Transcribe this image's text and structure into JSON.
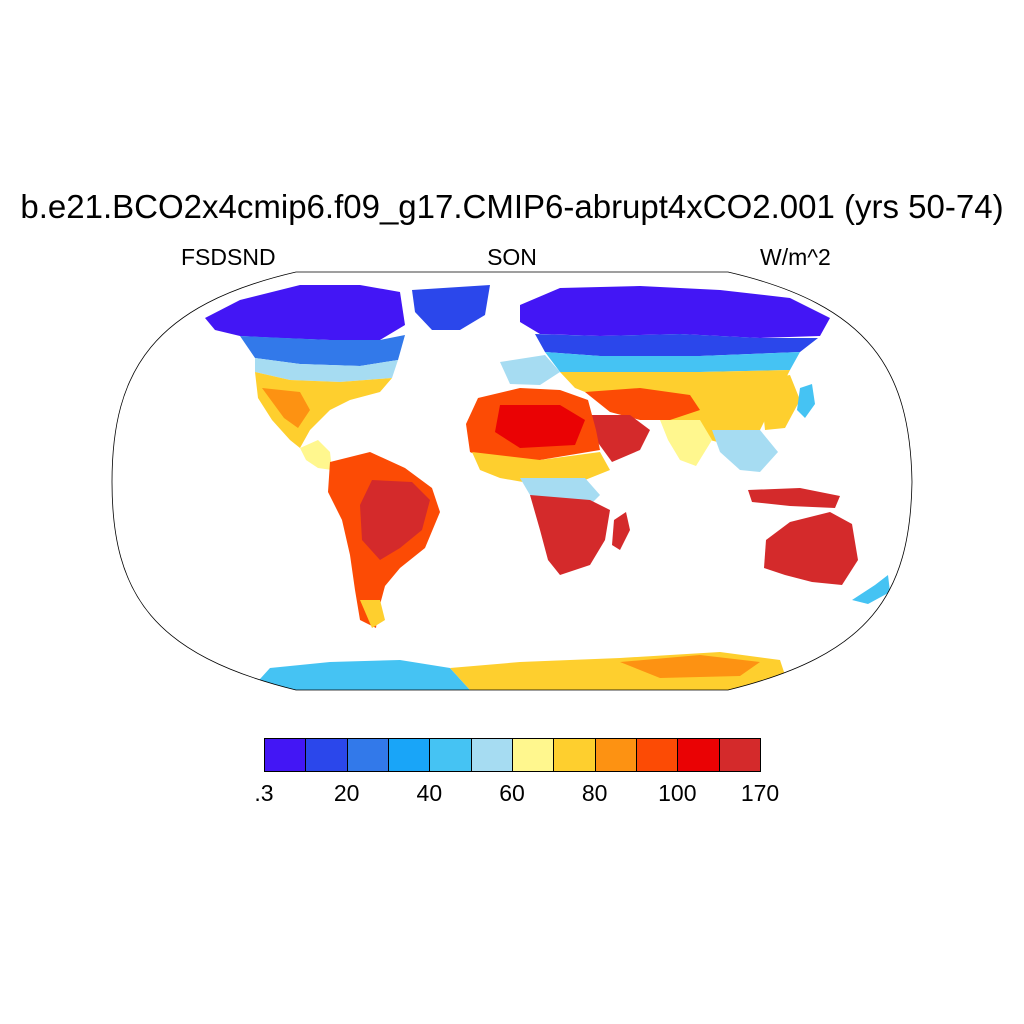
{
  "figure": {
    "title": "b.e21.BCO2x4cmip6.f09_g17.CMIP6-abrupt4xCO2.001 (yrs 50-74)",
    "left_label": "FSDSND",
    "center_label": "SON",
    "right_label": "W/m^2"
  },
  "colorbar": {
    "colors": [
      "#4316f5",
      "#2b47eb",
      "#3279ea",
      "#19a5f8",
      "#45c3f3",
      "#a6dcf2",
      "#fff78e",
      "#fecf2e",
      "#fd9212",
      "#fc4b05",
      "#ea0204",
      "#d42a2b"
    ],
    "labels": [
      ".3",
      "20",
      "40",
      "60",
      "80",
      "100",
      "170"
    ]
  },
  "palette": {
    "land_default": "#fd9212",
    "ocean": "#ffffff",
    "outline": "#000000"
  }
}
